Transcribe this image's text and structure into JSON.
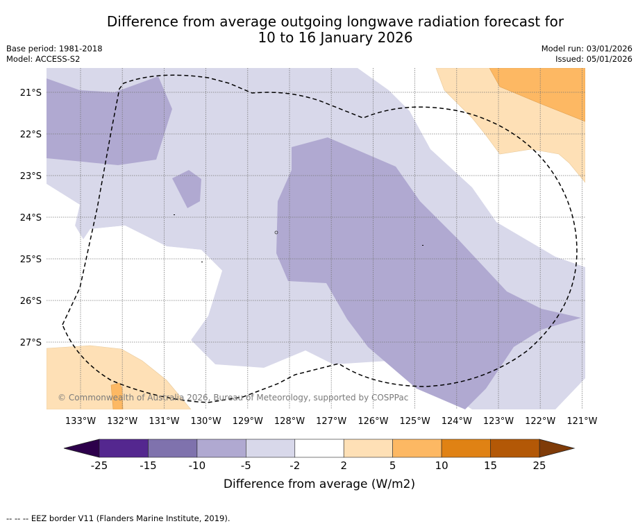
{
  "header": {
    "title_line1": "Difference from average outgoing longwave radiation forecast for",
    "title_line2": "10 to 16 January 2026",
    "base_period": "Base period: 1981-2018",
    "model": "Model: ACCESS-S2",
    "model_run": "Model run: 03/01/2026",
    "issued": "Issued: 05/01/2026"
  },
  "map": {
    "lat_labels": [
      "21°S",
      "22°S",
      "23°S",
      "24°S",
      "25°S",
      "26°S",
      "27°S"
    ],
    "lon_labels": [
      "133°W",
      "132°W",
      "131°W",
      "130°W",
      "129°W",
      "128°W",
      "127°W",
      "126°W",
      "125°W",
      "124°W",
      "123°W",
      "122°W",
      "121°W"
    ],
    "copyright": "© Commonwealth of Australia 2026, Bureau of Meteorology, supported by COSPPac",
    "layers": {
      "light_purple": "-5 to -2",
      "mid_purple": "-10 to -5",
      "light_orange": "2 to 5",
      "mid_orange": "5 to 10"
    }
  },
  "colorbar": {
    "title": "Difference from average (W/m2)",
    "ticks": [
      "-25",
      "-15",
      "-10",
      "-5",
      "-2",
      "2",
      "5",
      "10",
      "15",
      "25"
    ],
    "colors": [
      "#54278f",
      "#7f72ad",
      "#b0a9d1",
      "#d8d8ea",
      "#ffffff",
      "#fee0b6",
      "#fdb863",
      "#e08214",
      "#b35806"
    ],
    "under_color": "#2d004b",
    "over_color": "#7f3b08"
  },
  "footnote": "--  --  -- EEZ border V11 (Flanders Marine Institute, 2019)."
}
